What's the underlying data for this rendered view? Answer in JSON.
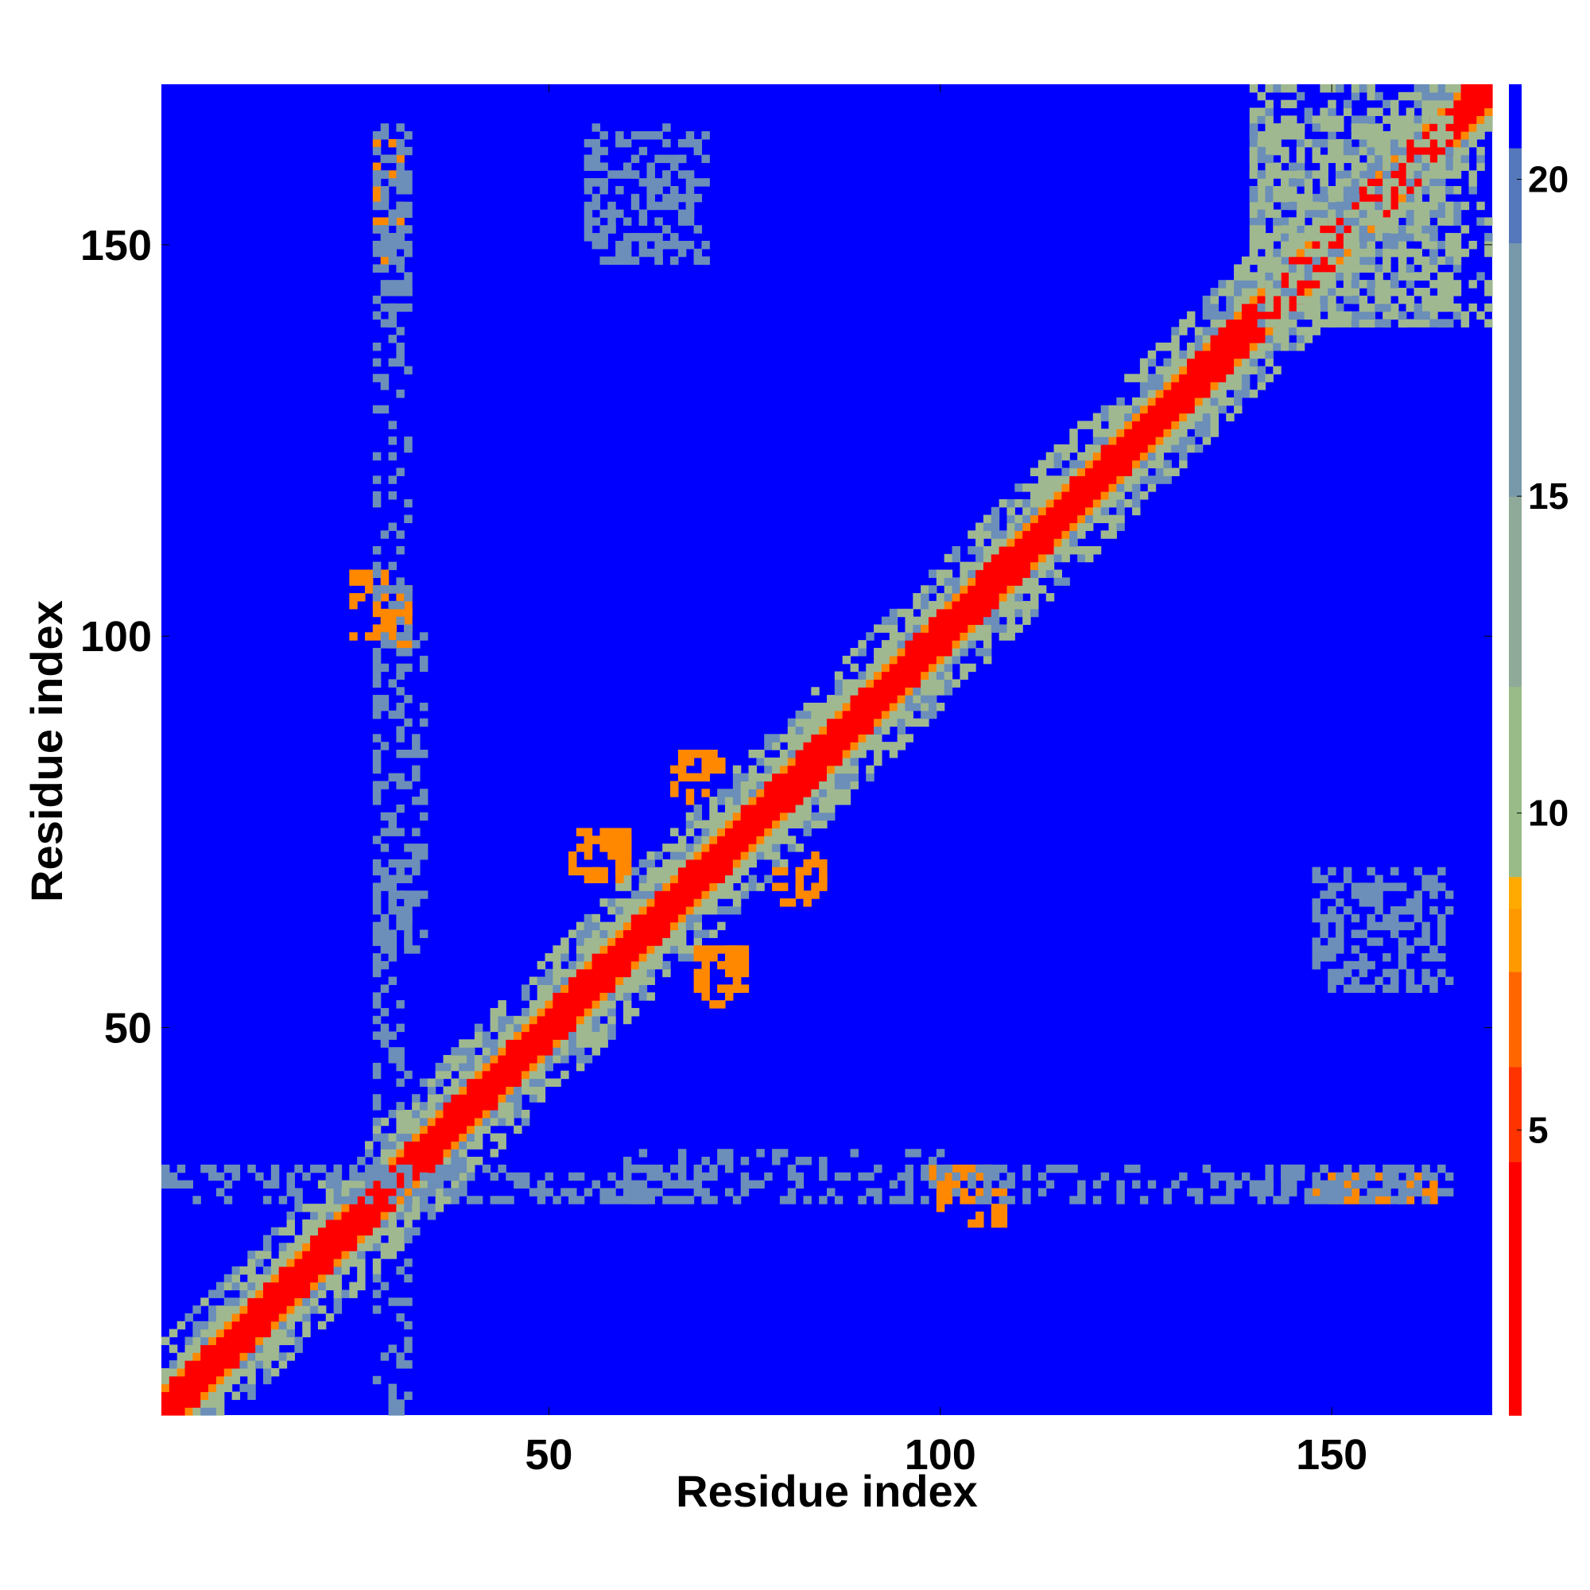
{
  "chart_data": {
    "type": "heatmap",
    "title": "",
    "xlabel": "Residue index",
    "ylabel": "Residue index",
    "xlim": [
      1,
      170
    ],
    "ylim": [
      1,
      170
    ],
    "x_ticks": [
      50,
      100,
      150
    ],
    "y_ticks": [
      50,
      100,
      150
    ],
    "grid": false,
    "colorbar": {
      "range": [
        0.5,
        21.5
      ],
      "ticks": [
        5,
        10,
        15,
        20
      ],
      "stops": [
        {
          "value": 0.5,
          "color": "#ff0000"
        },
        {
          "value": 4.5,
          "color": "#ff3300"
        },
        {
          "value": 6.0,
          "color": "#ff6600"
        },
        {
          "value": 7.5,
          "color": "#ff9900"
        },
        {
          "value": 8.5,
          "color": "#ffaa00"
        },
        {
          "value": 9.0,
          "color": "#99bb88"
        },
        {
          "value": 12.0,
          "color": "#8faa99"
        },
        {
          "value": 15.0,
          "color": "#7799aa"
        },
        {
          "value": 19.0,
          "color": "#5577bb"
        },
        {
          "value": 20.5,
          "color": "#0000ff"
        },
        {
          "value": 21.5,
          "color": "#0000ff"
        }
      ]
    },
    "colors": {
      "diagonal": "#ff0000",
      "near": "#ff8800",
      "mid": "#a0b890",
      "far": "#6b8fb8",
      "background": "#0000ff"
    },
    "contact_regions": [
      {
        "x": [
          1,
          170
        ],
        "y": [
          1,
          170
        ],
        "level": "diagonal-band"
      },
      {
        "x": [
          140,
          165
        ],
        "y": [
          140,
          170
        ],
        "level": "mid"
      },
      {
        "x": [
          53,
          60
        ],
        "y": [
          70,
          75
        ],
        "level": "near"
      },
      {
        "x": [
          69,
          74
        ],
        "y": [
          55,
          60
        ],
        "level": "near"
      },
      {
        "x": [
          67,
          72
        ],
        "y": [
          82,
          85
        ],
        "level": "near"
      },
      {
        "x": [
          79,
          85
        ],
        "y": [
          66,
          70
        ],
        "level": "near"
      },
      {
        "x": [
          25,
          32
        ],
        "y": [
          100,
          108
        ],
        "level": "near"
      },
      {
        "x": [
          99,
          106
        ],
        "y": [
          29,
          32
        ],
        "level": "near"
      },
      {
        "x": [
          148,
          163
        ],
        "y": [
          28,
          31
        ],
        "level": "near"
      },
      {
        "x": [
          28,
          32
        ],
        "y": [
          140,
          165
        ],
        "level": "far"
      },
      {
        "x": [
          55,
          70
        ],
        "y": [
          148,
          162
        ],
        "level": "far"
      },
      {
        "x": [
          148,
          165
        ],
        "y": [
          55,
          70
        ],
        "level": "far"
      },
      {
        "x": [
          1,
          70
        ],
        "y": [
          28,
          32
        ],
        "level": "far"
      },
      {
        "x": [
          90,
          160
        ],
        "y": [
          28,
          32
        ],
        "level": "far"
      },
      {
        "x": [
          28,
          34
        ],
        "y": [
          60,
          100
        ],
        "level": "far"
      }
    ]
  }
}
